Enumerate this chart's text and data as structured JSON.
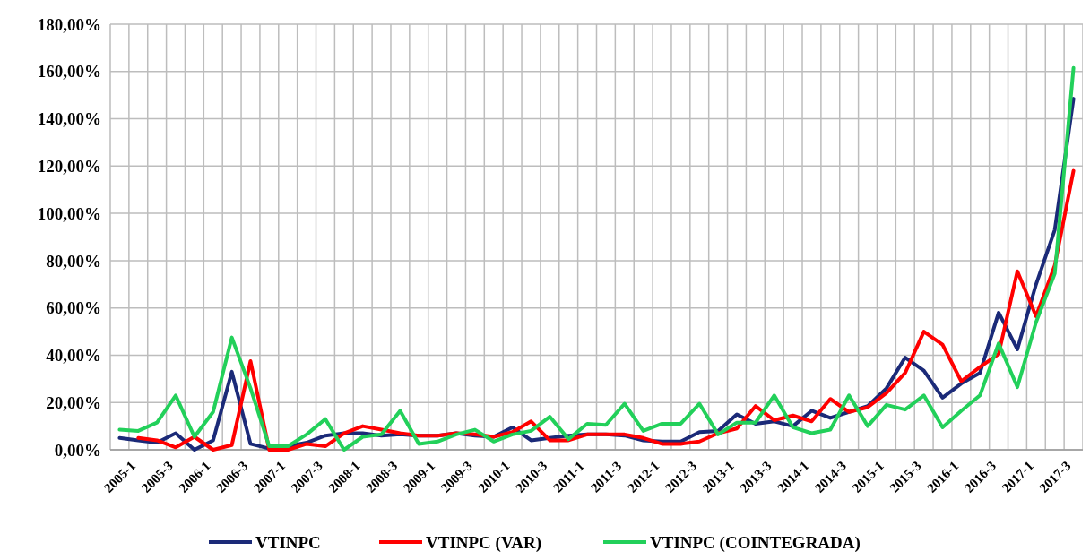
{
  "chart_data": {
    "type": "line",
    "categories": [
      "2005-1",
      null,
      "2005-3",
      null,
      "2006-1",
      null,
      "2006-3",
      null,
      "2007-1",
      null,
      "2007-3",
      null,
      "2008-1",
      null,
      "2008-3",
      null,
      "2009-1",
      null,
      "2009-3",
      null,
      "2010-1",
      null,
      "2010-3",
      null,
      "2011-1",
      null,
      "2011-3",
      null,
      "2012-1",
      null,
      "2012-3",
      null,
      "2013-1",
      null,
      "2013-3",
      null,
      "2014-1",
      null,
      "2014-3",
      null,
      "2015-1",
      null,
      "2015-3",
      null,
      "2016-1",
      null,
      "2016-3",
      null,
      "2017-1",
      null,
      "2017-3",
      null
    ],
    "series": [
      {
        "name": "VTINPC",
        "color": "#1b2a78",
        "values": [
          5,
          4,
          3,
          7,
          0,
          4,
          33,
          2.5,
          0.5,
          1.5,
          3,
          6,
          7,
          7,
          6,
          6.5,
          6,
          6,
          7,
          6,
          5.5,
          9.5,
          4,
          5,
          6,
          6.5,
          6.5,
          6,
          4,
          3.5,
          3.5,
          7.5,
          8,
          15,
          11,
          12,
          10,
          16.5,
          13.5,
          16,
          18.5,
          26,
          39,
          33.5,
          22,
          28,
          32.5,
          58,
          42.5,
          70,
          93,
          148.5
        ]
      },
      {
        "name": "VTINPC (VAR)",
        "color": "#ff0000",
        "values": [
          null,
          5,
          4,
          1,
          5.5,
          0,
          2,
          37.5,
          0,
          0,
          2.5,
          1.5,
          7,
          10,
          8.5,
          7,
          6,
          6,
          7,
          6.5,
          5.5,
          7.5,
          12,
          4,
          4,
          6.5,
          6.5,
          6.5,
          5,
          2.5,
          2.5,
          3.5,
          7,
          9,
          18.5,
          12.5,
          14.5,
          12,
          21.5,
          16,
          18,
          24,
          32.5,
          50,
          44.5,
          29,
          35,
          40.5,
          75.5,
          56.5,
          78,
          118
        ]
      },
      {
        "name": "VTINPC (COINTEGRADA)",
        "color": "#22d05a",
        "values": [
          8.5,
          8,
          11.5,
          23,
          5.5,
          16,
          47.5,
          26,
          1.5,
          1.5,
          6.5,
          13,
          0,
          5.5,
          6.5,
          16.5,
          2.5,
          3.5,
          6.5,
          8.5,
          3.5,
          6.5,
          8,
          14,
          4.5,
          11,
          10.5,
          19.5,
          8,
          11,
          11,
          19.5,
          6.5,
          11.5,
          11.5,
          23,
          9.5,
          7,
          8.5,
          23,
          10,
          19,
          17,
          23,
          9.5,
          16.5,
          23,
          45,
          26.5,
          54,
          74.5,
          161.5
        ]
      }
    ],
    "ylim": [
      0,
      180
    ],
    "yticks": [
      {
        "value": 0,
        "label": "0,00%"
      },
      {
        "value": 20,
        "label": "20,00%"
      },
      {
        "value": 40,
        "label": "40,00%"
      },
      {
        "value": 60,
        "label": "60,00%"
      },
      {
        "value": 80,
        "label": "80,00%"
      },
      {
        "value": 100,
        "label": "100,00%"
      },
      {
        "value": 120,
        "label": "120,00%"
      },
      {
        "value": 140,
        "label": "140,00%"
      },
      {
        "value": 160,
        "label": "160,00%"
      },
      {
        "value": 180,
        "label": "180,00%"
      }
    ],
    "grid": true,
    "legend": "bottom",
    "marker": "none",
    "line_style": "solid"
  }
}
